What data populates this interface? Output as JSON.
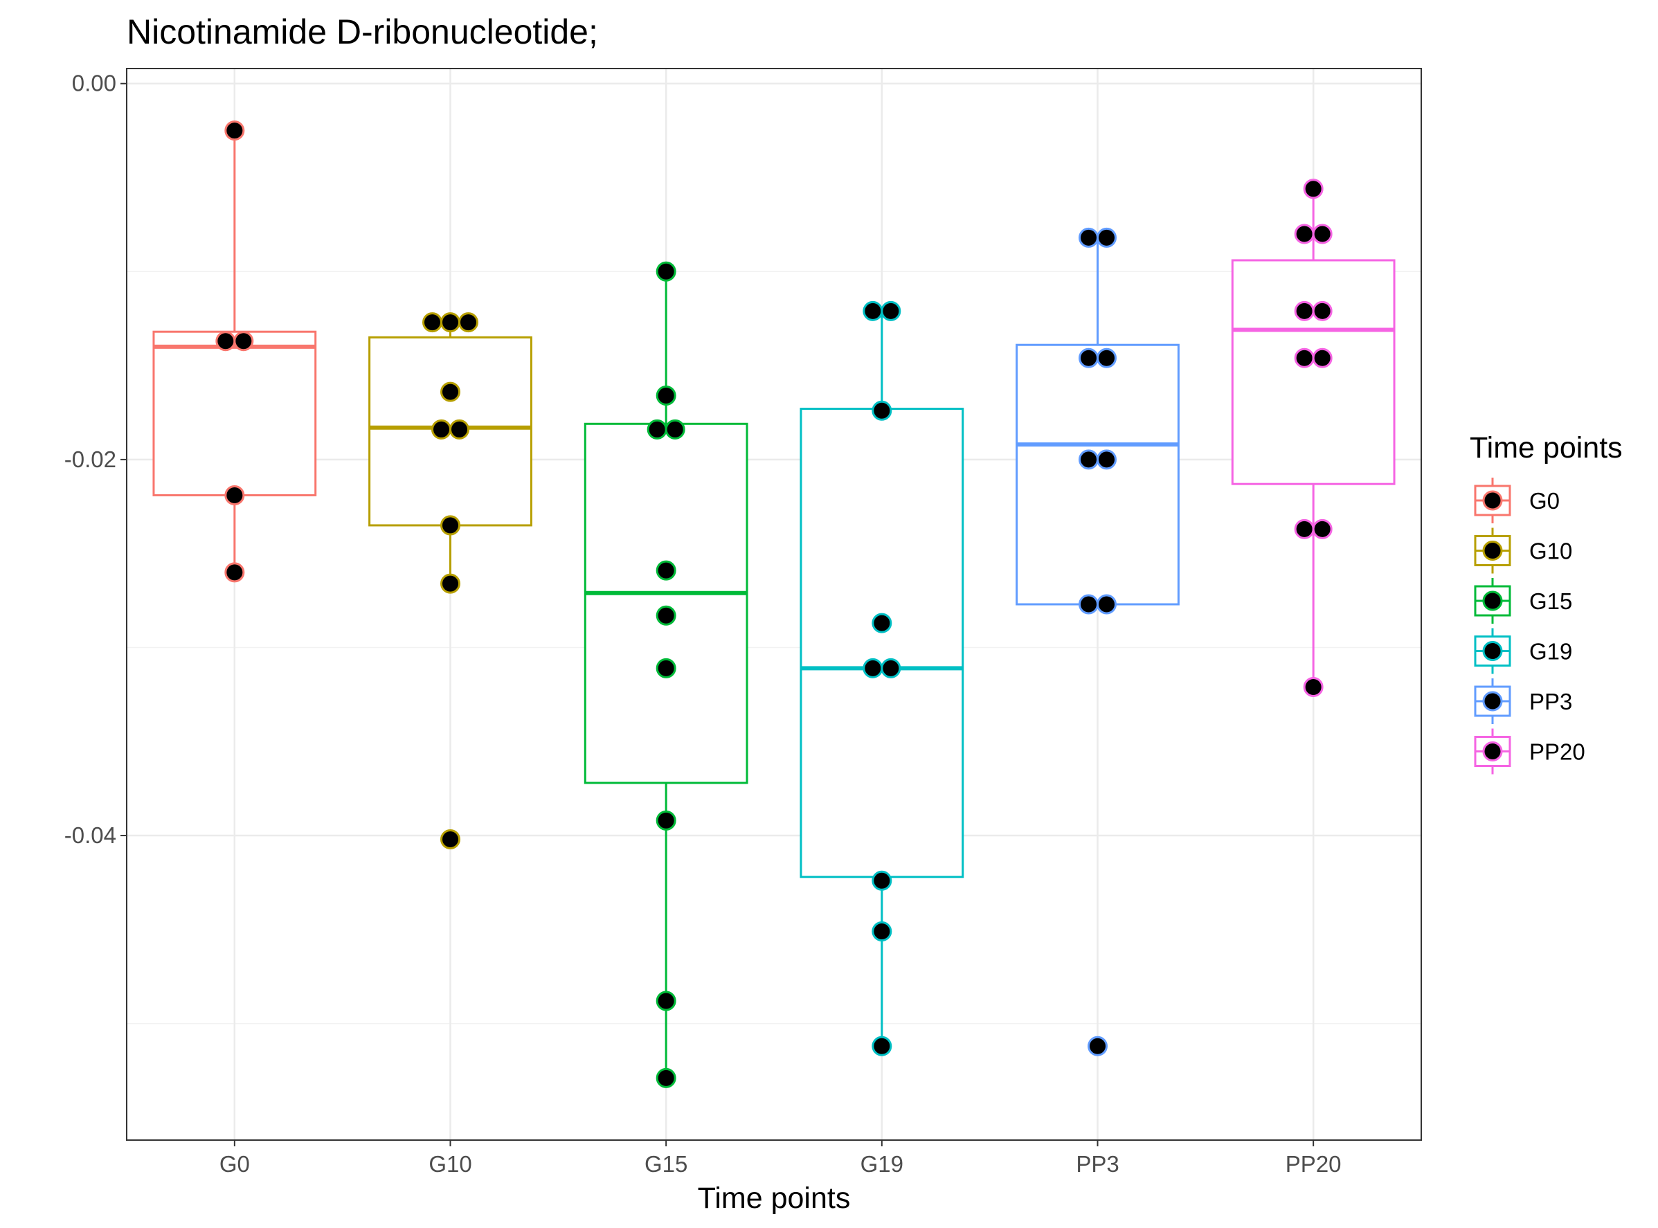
{
  "chart_data": {
    "type": "boxplot",
    "title": "Nicotinamide D-ribonucleotide;",
    "xlabel": "Time points",
    "ylabel": "",
    "categories": [
      "G0",
      "G10",
      "G15",
      "G19",
      "PP3",
      "PP20"
    ],
    "ylim": [
      -0.0562,
      0.0008
    ],
    "yticks": [
      0.0,
      -0.02,
      -0.04
    ],
    "ytick_labels": [
      "0.00",
      "-0.02",
      "-0.04"
    ],
    "grid": true,
    "colors": {
      "G0": "#F8766D",
      "G10": "#B79F00",
      "G15": "#00BA38",
      "G19": "#00BFC4",
      "PP3": "#619CFF",
      "PP20": "#F564E3"
    },
    "boxes": [
      {
        "category": "G0",
        "q1": -0.0219,
        "median": -0.014,
        "q3": -0.0132,
        "whisker_low": -0.026,
        "whisker_high": -0.0025
      },
      {
        "category": "G10",
        "q1": -0.0235,
        "median": -0.0183,
        "q3": -0.0135,
        "whisker_low": -0.0266,
        "whisker_high": -0.0122
      },
      {
        "category": "G15",
        "q1": -0.0372,
        "median": -0.0271,
        "q3": -0.0181,
        "whisker_low": -0.0529,
        "whisker_high": -0.01
      },
      {
        "category": "G19",
        "q1": -0.0422,
        "median": -0.0311,
        "q3": -0.0173,
        "whisker_low": -0.0512,
        "whisker_high": -0.0121
      },
      {
        "category": "PP3",
        "q1": -0.0277,
        "median": -0.0192,
        "q3": -0.0139,
        "whisker_low": -0.0277,
        "whisker_high": -0.0082
      },
      {
        "category": "PP20",
        "q1": -0.0213,
        "median": -0.0131,
        "q3": -0.0094,
        "whisker_low": -0.0321,
        "whisker_high": -0.0056
      }
    ],
    "points": [
      {
        "category": "G0",
        "values": [
          -0.0025,
          -0.0137,
          -0.0137,
          -0.0219,
          -0.026
        ]
      },
      {
        "category": "G10",
        "values": [
          -0.0127,
          -0.0127,
          -0.0127,
          -0.0164,
          -0.0184,
          -0.0184,
          -0.0235,
          -0.0266,
          -0.0402
        ]
      },
      {
        "category": "G15",
        "values": [
          -0.01,
          -0.0166,
          -0.0184,
          -0.0184,
          -0.0259,
          -0.0283,
          -0.0311,
          -0.0392,
          -0.0488,
          -0.0529
        ]
      },
      {
        "category": "G19",
        "values": [
          -0.0121,
          -0.0121,
          -0.0174,
          -0.0287,
          -0.0311,
          -0.0311,
          -0.0424,
          -0.0451,
          -0.0512
        ]
      },
      {
        "category": "PP3",
        "values": [
          -0.0082,
          -0.0082,
          -0.0146,
          -0.0146,
          -0.02,
          -0.02,
          -0.0277,
          -0.0277,
          -0.0512
        ]
      },
      {
        "category": "PP20",
        "values": [
          -0.0056,
          -0.008,
          -0.008,
          -0.0121,
          -0.0121,
          -0.0146,
          -0.0146,
          -0.0237,
          -0.0237,
          -0.0321
        ]
      }
    ],
    "legend": {
      "title": "Time points",
      "position": "right",
      "entries": [
        "G0",
        "G10",
        "G15",
        "G19",
        "PP3",
        "PP20"
      ]
    }
  }
}
